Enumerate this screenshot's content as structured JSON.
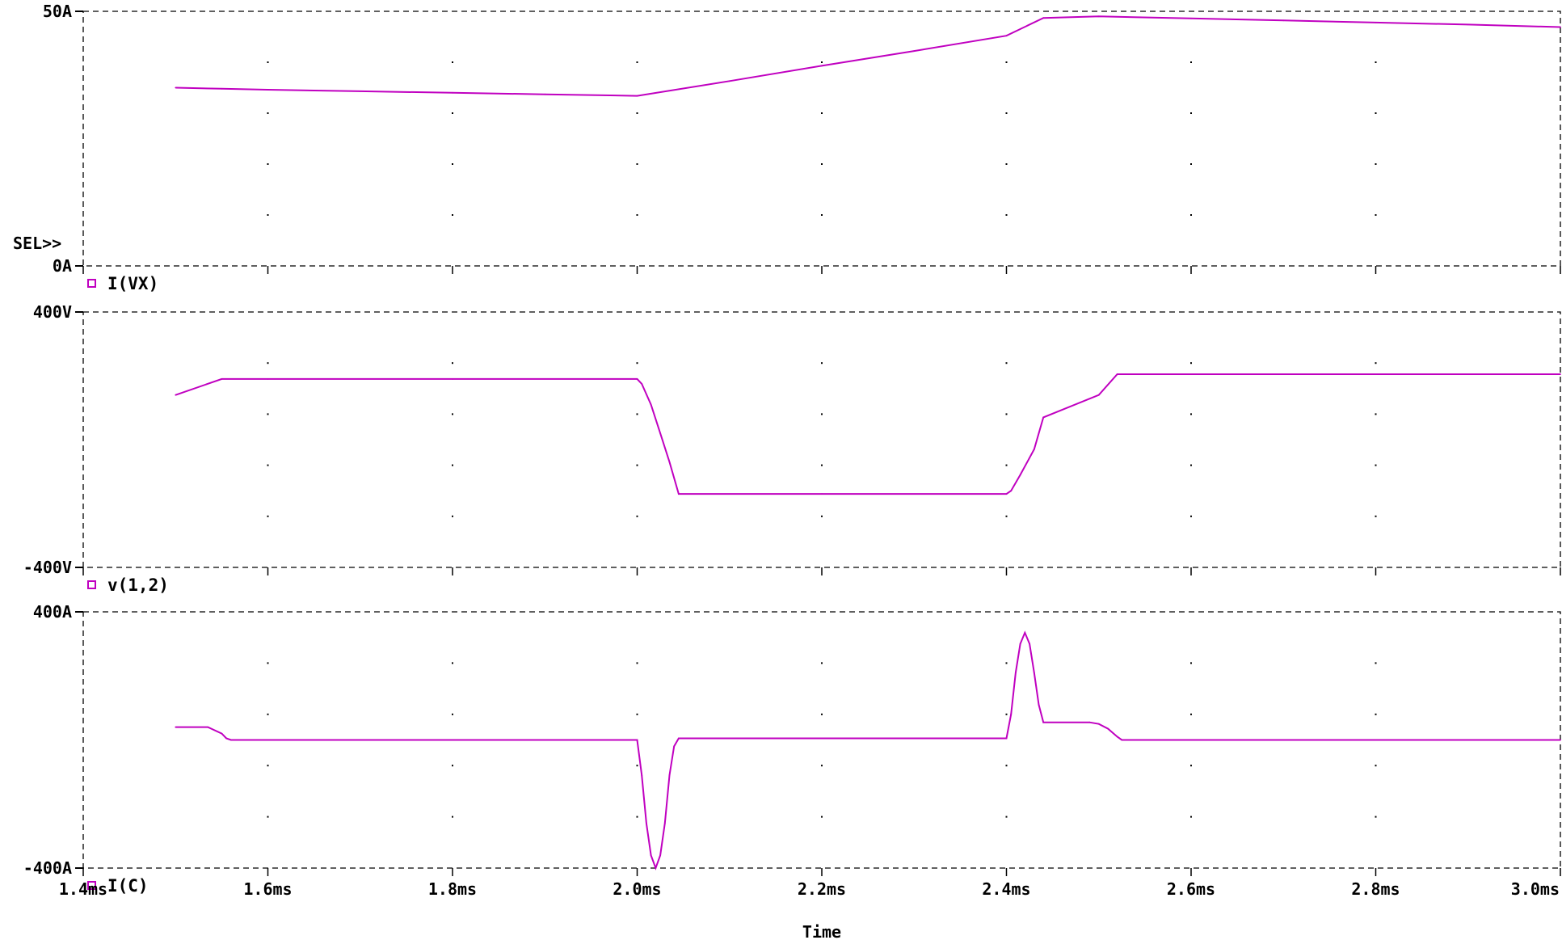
{
  "sel_marker": "SEL>>",
  "x_axis": {
    "label": "Time",
    "range": [
      1.4,
      3.0
    ],
    "unit": "ms",
    "ticks": [
      1.4,
      1.6,
      1.8,
      2.0,
      2.2,
      2.4,
      2.6,
      2.8,
      3.0
    ],
    "tick_labels": [
      "1.4ms",
      "1.6ms",
      "1.8ms",
      "2.0ms",
      "2.2ms",
      "2.4ms",
      "2.6ms",
      "2.8ms",
      "3.0ms"
    ]
  },
  "colors": {
    "trace": "#c000c0",
    "frame": "#000000",
    "background": "#ffffff"
  },
  "chart_data": [
    {
      "type": "line",
      "grid": true,
      "ylim": [
        0,
        50
      ],
      "y_tick_labels": [
        "50A",
        "0A"
      ],
      "series": [
        {
          "name": "I(VX)",
          "x": [
            1.5,
            1.55,
            1.6,
            1.7,
            1.8,
            1.9,
            2.0,
            2.1,
            2.2,
            2.3,
            2.4,
            2.44,
            2.5,
            2.6,
            2.7,
            2.8,
            2.9,
            3.0
          ],
          "y": [
            35,
            34.8,
            34.6,
            34.3,
            34,
            33.7,
            33.4,
            36.3,
            39.3,
            42.2,
            45.2,
            48.7,
            49,
            48.6,
            48.2,
            47.8,
            47.4,
            46.9
          ]
        }
      ]
    },
    {
      "type": "line",
      "grid": true,
      "ylim": [
        -400,
        400
      ],
      "y_tick_labels": [
        "400V",
        "-400V"
      ],
      "series": [
        {
          "name": "v(1,2)",
          "x": [
            1.5,
            1.55,
            1.6,
            1.8,
            2.0,
            2.005,
            2.015,
            2.025,
            2.035,
            2.045,
            2.2,
            2.4,
            2.405,
            2.415,
            2.43,
            2.44,
            2.5,
            2.52,
            2.6,
            2.8,
            3.0
          ],
          "y": [
            140,
            190,
            190,
            190,
            190,
            175,
            110,
            20,
            -70,
            -170,
            -170,
            -170,
            -160,
            -110,
            -30,
            70,
            140,
            205,
            205,
            205,
            205
          ]
        }
      ]
    },
    {
      "type": "line",
      "grid": true,
      "ylim": [
        -400,
        400
      ],
      "y_tick_labels": [
        "400A",
        "-400A"
      ],
      "series": [
        {
          "name": "I(C)",
          "x": [
            1.5,
            1.535,
            1.55,
            1.555,
            1.56,
            1.8,
            2.0,
            2.005,
            2.01,
            2.015,
            2.02,
            2.025,
            2.03,
            2.035,
            2.04,
            2.045,
            2.2,
            2.4,
            2.405,
            2.41,
            2.415,
            2.42,
            2.425,
            2.43,
            2.435,
            2.44,
            2.49,
            2.5,
            2.51,
            2.52,
            2.525,
            2.6,
            2.8,
            3.0
          ],
          "y": [
            40,
            40,
            20,
            5,
            0,
            0,
            0,
            -110,
            -260,
            -360,
            -400,
            -360,
            -260,
            -110,
            -20,
            5,
            5,
            5,
            80,
            210,
            300,
            335,
            300,
            210,
            110,
            55,
            55,
            50,
            35,
            10,
            0,
            0,
            0,
            0
          ]
        }
      ]
    }
  ]
}
